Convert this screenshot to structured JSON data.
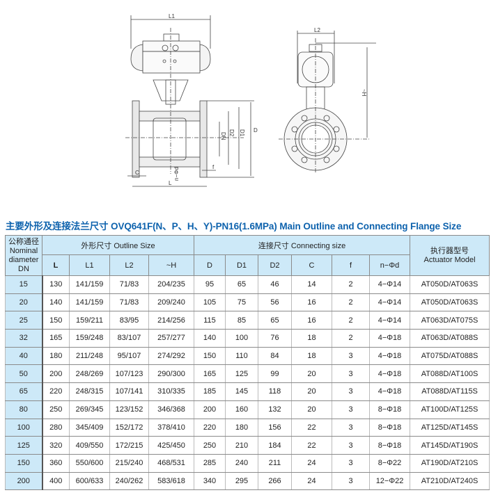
{
  "drawing_labels": {
    "front": {
      "L1": "L1",
      "DN": "DN",
      "D2": "D2",
      "D1": "D1",
      "D": "D",
      "C": "C",
      "L": "L",
      "f": "f",
      "nd": "n−Φd"
    },
    "side": {
      "L2": "L2",
      "H": "~H"
    }
  },
  "title": "主要外形及连接法兰尺寸 OVQ641F(N、P、H、Y)-PN16(1.6MPa)  Main Outline and Connecting Flange Size",
  "colors": {
    "title": "#0d62ad",
    "header_bg": "#cde9f8"
  },
  "table": {
    "header": {
      "dn": [
        "公称通径",
        "Nominal",
        "diameter",
        "DN"
      ],
      "outline_group": "外形尺寸 Outline Size",
      "connecting_group": "连接尺寸 Connecting size",
      "actuator": [
        "执行器型号",
        "Actuator Model"
      ],
      "columns": [
        "L",
        "L1",
        "L2",
        "~H",
        "D",
        "D1",
        "D2",
        "C",
        "f",
        "n−Φd"
      ]
    },
    "rows": [
      [
        "15",
        "130",
        "141/159",
        "71/83",
        "204/235",
        "95",
        "65",
        "46",
        "14",
        "2",
        "4−Φ14",
        "AT050D/AT063S"
      ],
      [
        "20",
        "140",
        "141/159",
        "71/83",
        "209/240",
        "105",
        "75",
        "56",
        "16",
        "2",
        "4−Φ14",
        "AT050D/AT063S"
      ],
      [
        "25",
        "150",
        "159/211",
        "83/95",
        "214/256",
        "115",
        "85",
        "65",
        "16",
        "2",
        "4−Φ14",
        "AT063D/AT075S"
      ],
      [
        "32",
        "165",
        "159/248",
        "83/107",
        "257/277",
        "140",
        "100",
        "76",
        "18",
        "2",
        "4−Φ18",
        "AT063D/AT088S"
      ],
      [
        "40",
        "180",
        "211/248",
        "95/107",
        "274/292",
        "150",
        "110",
        "84",
        "18",
        "3",
        "4−Φ18",
        "AT075D/AT088S"
      ],
      [
        "50",
        "200",
        "248/269",
        "107/123",
        "290/300",
        "165",
        "125",
        "99",
        "20",
        "3",
        "4−Φ18",
        "AT088D/AT100S"
      ],
      [
        "65",
        "220",
        "248/315",
        "107/141",
        "310/335",
        "185",
        "145",
        "118",
        "20",
        "3",
        "4−Φ18",
        "AT088D/AT115S"
      ],
      [
        "80",
        "250",
        "269/345",
        "123/152",
        "346/368",
        "200",
        "160",
        "132",
        "20",
        "3",
        "8−Φ18",
        "AT100D/AT125S"
      ],
      [
        "100",
        "280",
        "345/409",
        "152/172",
        "378/410",
        "220",
        "180",
        "156",
        "22",
        "3",
        "8−Φ18",
        "AT125D/AT145S"
      ],
      [
        "125",
        "320",
        "409/550",
        "172/215",
        "425/450",
        "250",
        "210",
        "184",
        "22",
        "3",
        "8−Φ18",
        "AT145D/AT190S"
      ],
      [
        "150",
        "360",
        "550/600",
        "215/240",
        "468/531",
        "285",
        "240",
        "211",
        "24",
        "3",
        "8−Φ22",
        "AT190D/AT210S"
      ],
      [
        "200",
        "400",
        "600/633",
        "240/262",
        "583/618",
        "340",
        "295",
        "266",
        "24",
        "3",
        "12−Φ22",
        "AT210D/AT240S"
      ]
    ]
  }
}
